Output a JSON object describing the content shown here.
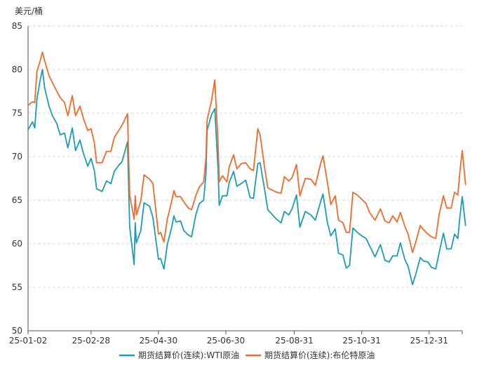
{
  "chart_data": {
    "type": "line",
    "unit_label": "美元/桶",
    "ylim": [
      50,
      85
    ],
    "y_ticks": [
      "85",
      "80",
      "75",
      "70",
      "65",
      "60",
      "55",
      "50"
    ],
    "x_ticks": [
      "25-01-02",
      "25-02-28",
      "25-04-30",
      "25-06-30",
      "25-08-31",
      "25-10-31",
      "25-12-31"
    ],
    "x_range": [
      "2025-01-02",
      "2026-01-30"
    ],
    "grid": "horizontal-dashed",
    "legend_position": "bottom",
    "colors": {
      "wti": "#1a9bb8",
      "brent": "#f06a2a"
    },
    "series": [
      {
        "key": "wti",
        "name": "期货结算价(连续):WTI原油",
        "points": [
          [
            "2025-01-02",
            73.1
          ],
          [
            "2025-01-06",
            74.0
          ],
          [
            "2025-01-08",
            73.3
          ],
          [
            "2025-01-10",
            76.6
          ],
          [
            "2025-01-13",
            78.8
          ],
          [
            "2025-01-15",
            80.0
          ],
          [
            "2025-01-17",
            77.9
          ],
          [
            "2025-01-21",
            75.8
          ],
          [
            "2025-01-24",
            74.7
          ],
          [
            "2025-01-28",
            73.8
          ],
          [
            "2025-01-31",
            72.5
          ],
          [
            "2025-02-04",
            72.7
          ],
          [
            "2025-02-07",
            71.0
          ],
          [
            "2025-02-11",
            73.3
          ],
          [
            "2025-02-14",
            70.7
          ],
          [
            "2025-02-18",
            71.9
          ],
          [
            "2025-02-21",
            70.4
          ],
          [
            "2025-02-25",
            68.9
          ],
          [
            "2025-02-28",
            69.8
          ],
          [
            "2025-03-03",
            68.4
          ],
          [
            "2025-03-05",
            66.3
          ],
          [
            "2025-03-10",
            66.0
          ],
          [
            "2025-03-14",
            67.2
          ],
          [
            "2025-03-18",
            66.9
          ],
          [
            "2025-03-21",
            68.3
          ],
          [
            "2025-03-25",
            69.0
          ],
          [
            "2025-03-28",
            69.4
          ],
          [
            "2025-04-02",
            71.7
          ],
          [
            "2025-04-03",
            66.9
          ],
          [
            "2025-04-04",
            61.9
          ],
          [
            "2025-04-08",
            57.6
          ],
          [
            "2025-04-09",
            62.4
          ],
          [
            "2025-04-10",
            60.1
          ],
          [
            "2025-04-14",
            61.5
          ],
          [
            "2025-04-17",
            64.7
          ],
          [
            "2025-04-22",
            64.3
          ],
          [
            "2025-04-25",
            63.0
          ],
          [
            "2025-04-30",
            58.2
          ],
          [
            "2025-05-02",
            58.3
          ],
          [
            "2025-05-05",
            57.1
          ],
          [
            "2025-05-08",
            59.9
          ],
          [
            "2025-05-12",
            61.9
          ],
          [
            "2025-05-14",
            63.2
          ],
          [
            "2025-05-16",
            62.5
          ],
          [
            "2025-05-20",
            62.6
          ],
          [
            "2025-05-23",
            61.5
          ],
          [
            "2025-05-27",
            61.0
          ],
          [
            "2025-05-30",
            60.8
          ],
          [
            "2025-06-03",
            63.4
          ],
          [
            "2025-06-06",
            64.6
          ],
          [
            "2025-06-10",
            65.0
          ],
          [
            "2025-06-12",
            68.0
          ],
          [
            "2025-06-13",
            73.0
          ],
          [
            "2025-06-17",
            74.8
          ],
          [
            "2025-06-20",
            75.5
          ],
          [
            "2025-06-23",
            68.5
          ],
          [
            "2025-06-24",
            64.4
          ],
          [
            "2025-06-27",
            65.5
          ],
          [
            "2025-07-01",
            65.5
          ],
          [
            "2025-07-03",
            67.0
          ],
          [
            "2025-07-07",
            68.3
          ],
          [
            "2025-07-10",
            66.6
          ],
          [
            "2025-07-14",
            66.9
          ],
          [
            "2025-07-18",
            67.3
          ],
          [
            "2025-07-22",
            65.3
          ],
          [
            "2025-07-25",
            65.2
          ],
          [
            "2025-07-29",
            69.2
          ],
          [
            "2025-07-31",
            69.3
          ],
          [
            "2025-08-04",
            66.3
          ],
          [
            "2025-08-07",
            63.9
          ],
          [
            "2025-08-12",
            63.2
          ],
          [
            "2025-08-15",
            62.8
          ],
          [
            "2025-08-19",
            62.4
          ],
          [
            "2025-08-22",
            63.7
          ],
          [
            "2025-08-26",
            63.3
          ],
          [
            "2025-08-29",
            64.0
          ],
          [
            "2025-09-02",
            65.6
          ],
          [
            "2025-09-05",
            61.9
          ],
          [
            "2025-09-10",
            63.7
          ],
          [
            "2025-09-15",
            63.3
          ],
          [
            "2025-09-19",
            62.7
          ],
          [
            "2025-09-24",
            64.9
          ],
          [
            "2025-09-26",
            65.7
          ],
          [
            "2025-09-30",
            62.4
          ],
          [
            "2025-10-03",
            60.9
          ],
          [
            "2025-10-07",
            61.7
          ],
          [
            "2025-10-10",
            58.9
          ],
          [
            "2025-10-14",
            58.7
          ],
          [
            "2025-10-17",
            57.2
          ],
          [
            "2025-10-20",
            57.5
          ],
          [
            "2025-10-23",
            61.8
          ],
          [
            "2025-10-27",
            61.3
          ],
          [
            "2025-10-31",
            60.9
          ],
          [
            "2025-11-04",
            60.6
          ],
          [
            "2025-11-07",
            59.8
          ],
          [
            "2025-11-12",
            58.5
          ],
          [
            "2025-11-17",
            59.9
          ],
          [
            "2025-11-21",
            58.1
          ],
          [
            "2025-11-25",
            57.9
          ],
          [
            "2025-11-28",
            58.6
          ],
          [
            "2025-12-02",
            58.6
          ],
          [
            "2025-12-05",
            60.1
          ],
          [
            "2025-12-09",
            58.2
          ],
          [
            "2025-12-12",
            57.4
          ],
          [
            "2025-12-16",
            55.3
          ],
          [
            "2025-12-19",
            56.5
          ],
          [
            "2025-12-23",
            58.4
          ],
          [
            "2025-12-26",
            58.0
          ],
          [
            "2025-12-30",
            57.9
          ],
          [
            "2026-01-02",
            57.3
          ],
          [
            "2026-01-06",
            57.1
          ],
          [
            "2026-01-09",
            58.9
          ],
          [
            "2026-01-13",
            61.2
          ],
          [
            "2026-01-16",
            59.4
          ],
          [
            "2026-01-20",
            59.4
          ],
          [
            "2026-01-23",
            61.1
          ],
          [
            "2026-01-26",
            60.6
          ],
          [
            "2026-01-28",
            63.2
          ],
          [
            "2026-01-30",
            65.4
          ],
          [
            "2026-02-02",
            62.1
          ]
        ]
      },
      {
        "key": "brent",
        "name": "期货结算价(连续):布伦特原油",
        "points": [
          [
            "2025-01-02",
            75.9
          ],
          [
            "2025-01-06",
            76.3
          ],
          [
            "2025-01-08",
            76.2
          ],
          [
            "2025-01-10",
            79.8
          ],
          [
            "2025-01-13",
            81.0
          ],
          [
            "2025-01-15",
            82.0
          ],
          [
            "2025-01-17",
            81.0
          ],
          [
            "2025-01-21",
            79.3
          ],
          [
            "2025-01-24",
            78.5
          ],
          [
            "2025-01-28",
            77.5
          ],
          [
            "2025-01-31",
            76.8
          ],
          [
            "2025-02-04",
            76.2
          ],
          [
            "2025-02-07",
            74.7
          ],
          [
            "2025-02-11",
            77.0
          ],
          [
            "2025-02-14",
            74.7
          ],
          [
            "2025-02-18",
            75.8
          ],
          [
            "2025-02-21",
            74.4
          ],
          [
            "2025-02-25",
            73.0
          ],
          [
            "2025-02-28",
            73.2
          ],
          [
            "2025-03-03",
            71.6
          ],
          [
            "2025-03-05",
            69.3
          ],
          [
            "2025-03-10",
            69.3
          ],
          [
            "2025-03-14",
            70.6
          ],
          [
            "2025-03-18",
            70.6
          ],
          [
            "2025-03-21",
            72.2
          ],
          [
            "2025-03-25",
            73.0
          ],
          [
            "2025-03-28",
            73.6
          ],
          [
            "2025-04-02",
            74.9
          ],
          [
            "2025-04-03",
            70.1
          ],
          [
            "2025-04-04",
            65.6
          ],
          [
            "2025-04-08",
            62.8
          ],
          [
            "2025-04-09",
            65.5
          ],
          [
            "2025-04-10",
            63.3
          ],
          [
            "2025-04-14",
            64.9
          ],
          [
            "2025-04-17",
            67.9
          ],
          [
            "2025-04-22",
            67.4
          ],
          [
            "2025-04-25",
            66.9
          ],
          [
            "2025-04-30",
            61.1
          ],
          [
            "2025-05-02",
            61.3
          ],
          [
            "2025-05-05",
            60.2
          ],
          [
            "2025-05-08",
            62.8
          ],
          [
            "2025-05-12",
            64.9
          ],
          [
            "2025-05-14",
            66.1
          ],
          [
            "2025-05-16",
            65.4
          ],
          [
            "2025-05-20",
            65.4
          ],
          [
            "2025-05-23",
            64.8
          ],
          [
            "2025-05-27",
            64.1
          ],
          [
            "2025-05-30",
            63.9
          ],
          [
            "2025-06-03",
            65.6
          ],
          [
            "2025-06-06",
            66.5
          ],
          [
            "2025-06-10",
            67.1
          ],
          [
            "2025-06-12",
            69.8
          ],
          [
            "2025-06-13",
            74.2
          ],
          [
            "2025-06-17",
            76.4
          ],
          [
            "2025-06-20",
            78.8
          ],
          [
            "2025-06-23",
            71.5
          ],
          [
            "2025-06-24",
            67.1
          ],
          [
            "2025-06-27",
            67.8
          ],
          [
            "2025-07-01",
            67.1
          ],
          [
            "2025-07-03",
            68.8
          ],
          [
            "2025-07-07",
            70.2
          ],
          [
            "2025-07-10",
            68.6
          ],
          [
            "2025-07-14",
            69.2
          ],
          [
            "2025-07-18",
            69.3
          ],
          [
            "2025-07-22",
            68.6
          ],
          [
            "2025-07-25",
            68.4
          ],
          [
            "2025-07-29",
            73.2
          ],
          [
            "2025-07-31",
            72.5
          ],
          [
            "2025-08-04",
            68.8
          ],
          [
            "2025-08-07",
            66.4
          ],
          [
            "2025-08-12",
            66.1
          ],
          [
            "2025-08-15",
            65.9
          ],
          [
            "2025-08-19",
            65.8
          ],
          [
            "2025-08-22",
            67.7
          ],
          [
            "2025-08-26",
            67.2
          ],
          [
            "2025-08-29",
            67.6
          ],
          [
            "2025-09-02",
            69.1
          ],
          [
            "2025-09-05",
            65.5
          ],
          [
            "2025-09-10",
            67.5
          ],
          [
            "2025-09-15",
            67.4
          ],
          [
            "2025-09-19",
            66.7
          ],
          [
            "2025-09-24",
            69.3
          ],
          [
            "2025-09-26",
            70.1
          ],
          [
            "2025-09-30",
            67.0
          ],
          [
            "2025-10-03",
            64.5
          ],
          [
            "2025-10-07",
            65.5
          ],
          [
            "2025-10-10",
            62.7
          ],
          [
            "2025-10-14",
            62.4
          ],
          [
            "2025-10-17",
            61.3
          ],
          [
            "2025-10-20",
            61.3
          ],
          [
            "2025-10-23",
            65.9
          ],
          [
            "2025-10-27",
            65.6
          ],
          [
            "2025-10-31",
            65.1
          ],
          [
            "2025-11-04",
            64.6
          ],
          [
            "2025-11-07",
            63.6
          ],
          [
            "2025-11-12",
            62.7
          ],
          [
            "2025-11-17",
            64.0
          ],
          [
            "2025-11-21",
            62.6
          ],
          [
            "2025-11-25",
            62.4
          ],
          [
            "2025-11-28",
            63.2
          ],
          [
            "2025-12-02",
            62.5
          ],
          [
            "2025-12-05",
            63.6
          ],
          [
            "2025-12-09",
            62.0
          ],
          [
            "2025-12-12",
            61.1
          ],
          [
            "2025-12-16",
            59.0
          ],
          [
            "2025-12-19",
            60.2
          ],
          [
            "2025-12-23",
            62.1
          ],
          [
            "2025-12-26",
            61.6
          ],
          [
            "2025-12-30",
            61.1
          ],
          [
            "2026-01-02",
            60.8
          ],
          [
            "2026-01-06",
            60.6
          ],
          [
            "2026-01-09",
            63.3
          ],
          [
            "2026-01-13",
            65.5
          ],
          [
            "2026-01-16",
            64.1
          ],
          [
            "2026-01-20",
            64.1
          ],
          [
            "2026-01-23",
            65.9
          ],
          [
            "2026-01-26",
            65.6
          ],
          [
            "2026-01-28",
            68.4
          ],
          [
            "2026-01-30",
            70.7
          ],
          [
            "2026-02-02",
            66.8
          ]
        ]
      }
    ]
  }
}
